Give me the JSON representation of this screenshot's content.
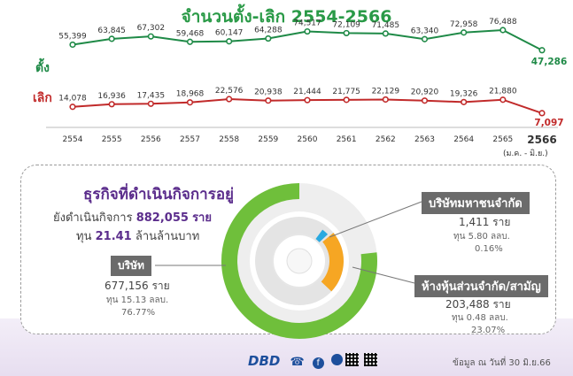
{
  "title": "จำนวนตั้ง-เลิก 2554-2566",
  "series_labels": {
    "open": "ตั้ง",
    "close": "เลิก"
  },
  "year_note": "(ม.ค. - มิ.ย.)",
  "colors": {
    "open": "#1f8a47",
    "close": "#c12a2a",
    "purple": "#5b2d8c",
    "donut_green": "#6fbf3b",
    "donut_orange": "#f6a623",
    "donut_blue": "#29a9e0"
  },
  "chart_data": [
    {
      "type": "line",
      "x": [
        "2554",
        "2555",
        "2556",
        "2557",
        "2558",
        "2559",
        "2560",
        "2561",
        "2562",
        "2563",
        "2564",
        "2565",
        "2566"
      ],
      "series": [
        {
          "name": "ตั้ง",
          "values": [
            55399,
            63845,
            67302,
            59468,
            60147,
            64288,
            74517,
            72109,
            71485,
            63340,
            72958,
            76488,
            47286
          ]
        },
        {
          "name": "เลิก",
          "values": [
            14078,
            16936,
            17435,
            18968,
            22576,
            20938,
            21444,
            21775,
            22129,
            20920,
            19326,
            21880,
            7097
          ]
        }
      ],
      "value_labels": {
        "open": [
          "55,399",
          "63,845",
          "67,302",
          "59,468",
          "60,147",
          "64,288",
          "74,517",
          "72,109",
          "71,485",
          "63,340",
          "72,958",
          "76,488",
          "47,286"
        ],
        "close": [
          "14,078",
          "16,936",
          "17,435",
          "18,968",
          "22,576",
          "20,938",
          "21,444",
          "21,775",
          "22,129",
          "20,920",
          "19,326",
          "21,880",
          "7,097"
        ]
      }
    },
    {
      "type": "pie",
      "categories": [
        "บริษัท",
        "ห้างหุ้นส่วนจำกัด/สามัญ",
        "บริษัทมหาชนจำกัด"
      ],
      "values": [
        677156,
        203488,
        1411
      ],
      "percent": [
        76.77,
        23.07,
        0.16
      ]
    }
  ],
  "panel": {
    "title": "ธุรกิจที่ดำเนินกิจการอยู่",
    "line1_prefix": "ยังดำเนินกิจการ",
    "line1_value": "882,055",
    "line1_suffix": "ราย",
    "line2_prefix": "ทุน",
    "line2_value": "21.41",
    "line2_suffix": "ล้านล้านบาท"
  },
  "segments": {
    "company": {
      "label": "บริษัท",
      "count": "677,156 ราย",
      "capital": "ทุน 15.13 ลลบ.",
      "percent": "76.77%"
    },
    "public": {
      "label": "บริษัทมหาชนจำกัด",
      "count": "1,411 ราย",
      "capital": "ทุน 5.80 ลลบ.",
      "percent": "0.16%"
    },
    "partnership": {
      "label": "ห้างหุ้นส่วนจำกัด/สามัญ",
      "count": "203,488 ราย",
      "capital": "ทุน 0.48 ลลบ.",
      "percent": "23.07%"
    }
  },
  "footer": {
    "note": "ข้อมูล ณ วันที่ 30 มิ.ย.66",
    "logo_text": "DBD"
  }
}
